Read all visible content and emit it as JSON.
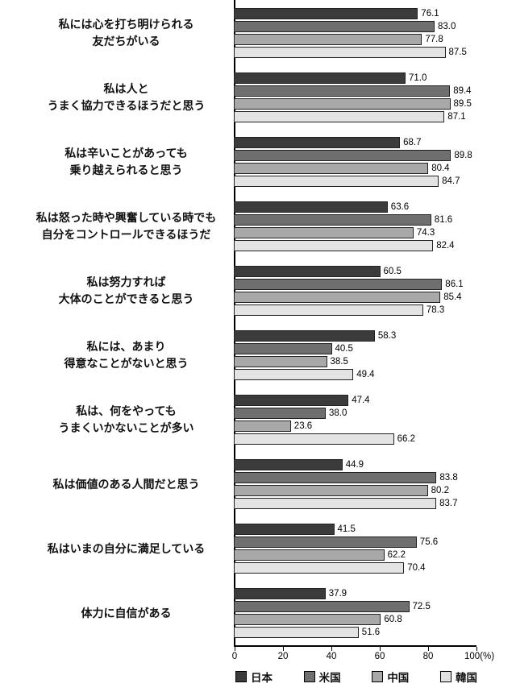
{
  "chart_data": {
    "type": "bar",
    "orientation": "horizontal",
    "unit": "%",
    "xlim": [
      0,
      100
    ],
    "grid": false,
    "legend_position": "bottom",
    "ticks": [
      "0",
      "20",
      "40",
      "60",
      "80",
      "100(%)"
    ],
    "tick_values": [
      0,
      20,
      40,
      60,
      80,
      100
    ],
    "series": [
      {
        "key": "japan",
        "name": "日本",
        "color": "#3b3b3b"
      },
      {
        "key": "usa",
        "name": "米国",
        "color": "#6f6f6f"
      },
      {
        "key": "china",
        "name": "中国",
        "color": "#a8a8a8"
      },
      {
        "key": "korea",
        "name": "韓国",
        "color": "#e3e3e3"
      }
    ],
    "categories": [
      {
        "label_lines": [
          "私には心を打ち明けられる",
          "友だちがいる"
        ],
        "values": [
          76.1,
          83.0,
          77.8,
          87.5
        ]
      },
      {
        "label_lines": [
          "私は人と",
          "うまく協力できるほうだと思う"
        ],
        "values": [
          71.0,
          89.4,
          89.5,
          87.1
        ]
      },
      {
        "label_lines": [
          "私は辛いことがあっても",
          "乗り越えられると思う"
        ],
        "values": [
          68.7,
          89.8,
          80.4,
          84.7
        ]
      },
      {
        "label_lines": [
          "私は怒った時や興奮している時でも",
          "自分をコントロールできるほうだ"
        ],
        "values": [
          63.6,
          81.6,
          74.3,
          82.4
        ]
      },
      {
        "label_lines": [
          "私は努力すれば",
          "大体のことができると思う"
        ],
        "values": [
          60.5,
          86.1,
          85.4,
          78.3
        ]
      },
      {
        "label_lines": [
          "私には、あまり",
          "得意なことがないと思う"
        ],
        "values": [
          58.3,
          40.5,
          38.5,
          49.4
        ]
      },
      {
        "label_lines": [
          "私は、何をやっても",
          "うまくいかないことが多い"
        ],
        "values": [
          47.4,
          38.0,
          23.6,
          66.2
        ]
      },
      {
        "label_lines": [
          "私は価値のある人間だと思う"
        ],
        "values": [
          44.9,
          83.8,
          80.2,
          83.7
        ]
      },
      {
        "label_lines": [
          "私はいまの自分に満足している"
        ],
        "values": [
          41.5,
          75.6,
          62.2,
          70.4
        ]
      },
      {
        "label_lines": [
          "体力に自信がある"
        ],
        "values": [
          37.9,
          72.5,
          60.8,
          51.6
        ]
      }
    ]
  }
}
